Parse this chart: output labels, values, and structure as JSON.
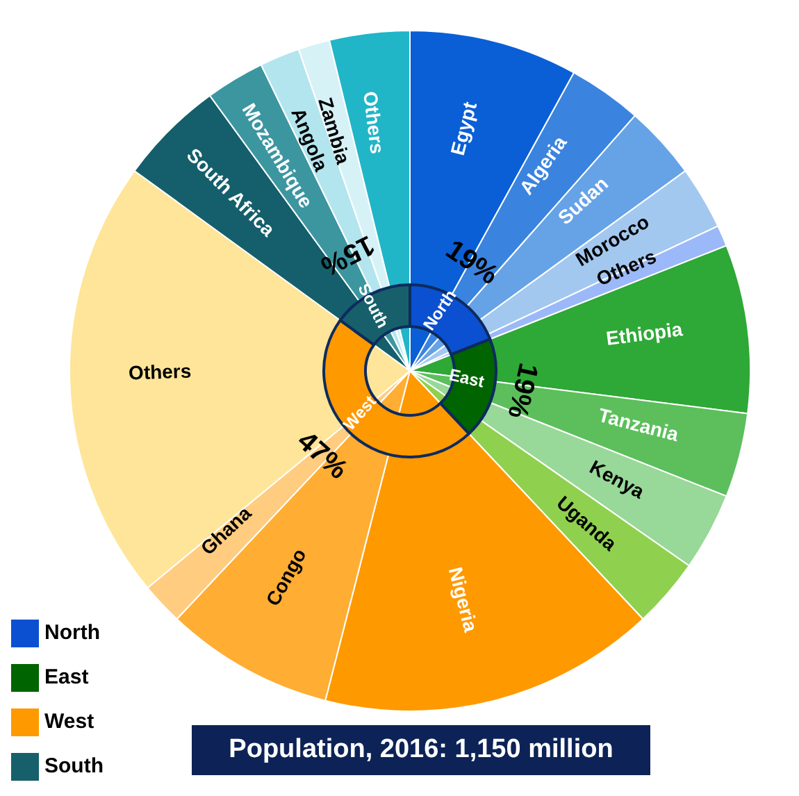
{
  "chart_data": [
    {
      "type": "pie",
      "title": "Population, 2016: 1,150 million",
      "categories": [
        "Egypt",
        "Algeria",
        "Sudan",
        "Morocco",
        "Others",
        "Ethiopia",
        "Tanzania",
        "Kenya",
        "Uganda",
        "Nigeria",
        "Congo",
        "Ghana",
        "Others",
        "South Africa",
        "Mozambique",
        "Angola",
        "Zambia",
        "Others"
      ],
      "values": [
        8,
        3.5,
        3.5,
        3,
        1,
        8,
        4,
        3.7,
        3.3,
        16,
        8,
        2,
        21,
        5,
        2.8,
        1.9,
        1.5,
        3.8
      ],
      "colors": [
        "#0a5fd6",
        "#3a84e0",
        "#66a3e6",
        "#a3c8f0",
        "#9bb8f8",
        "#2ea836",
        "#5cbf5c",
        "#98d898",
        "#8fd14f",
        "#ff9900",
        "#ffad33",
        "#ffcc80",
        "#ffe599",
        "#145f6b",
        "#3c96a0",
        "#b3e5ee",
        "#d6f2f7",
        "#21b5c8"
      ]
    },
    {
      "type": "donut",
      "legend": "bottom left",
      "categories": [
        "North",
        "East",
        "West",
        "South"
      ],
      "values": [
        19,
        19,
        47,
        15
      ],
      "colors": [
        "#0b50d0",
        "#006400",
        "#ff9900",
        "#17606b"
      ],
      "value_labels": [
        "19%",
        "19%",
        "47%",
        "15%"
      ]
    }
  ]
}
